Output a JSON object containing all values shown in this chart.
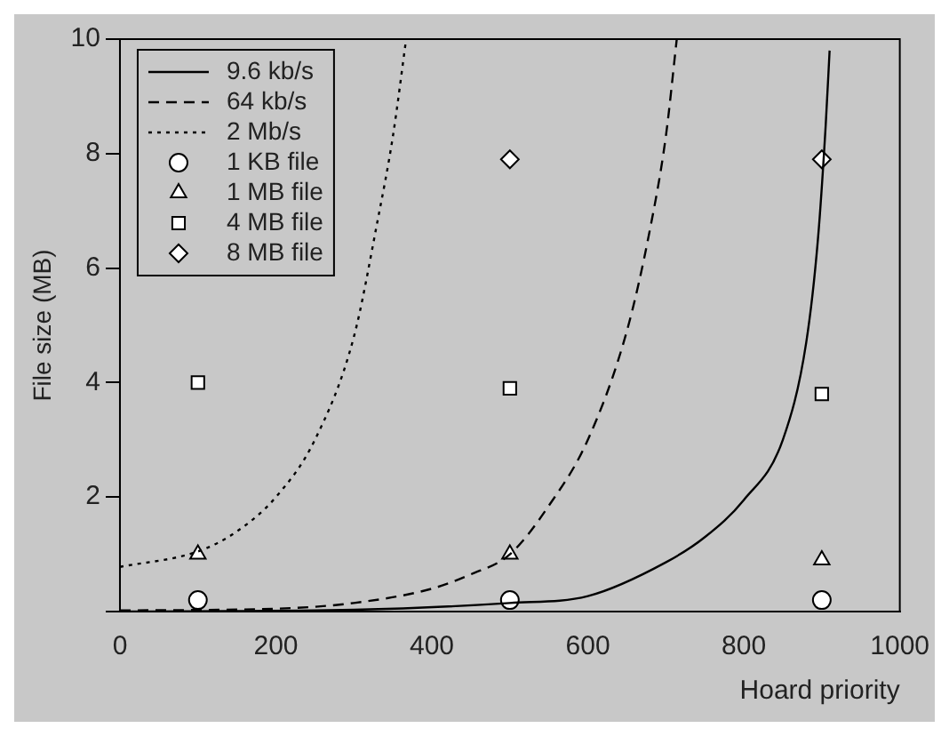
{
  "chart_data": {
    "type": "scatter",
    "xlabel": "Hoard priority",
    "ylabel": "File size (MB)",
    "xlim": [
      0,
      1000
    ],
    "xticks": [
      0,
      200,
      400,
      600,
      800,
      1000
    ],
    "ylim": [
      0,
      10
    ],
    "yticks": [
      {
        "value": 0,
        "label": null
      },
      2,
      4,
      6,
      8,
      10
    ],
    "grid": false,
    "legend": "top left",
    "series": [
      {
        "name": "9.6 kb/s",
        "type": "line",
        "color": "#000000",
        "line_style": "solid",
        "marker": "none",
        "x": [
          0,
          300,
          500,
          600,
          700,
          750,
          800,
          850,
          880,
          895,
          905,
          910
        ],
        "values": [
          0,
          0.03,
          0.15,
          0.27,
          0.86,
          1.3,
          1.95,
          3.0,
          4.7,
          6.5,
          8.5,
          9.8
        ]
      },
      {
        "name": "64 kb/s",
        "type": "line",
        "color": "#000000",
        "line_style": "dashed",
        "marker": "none",
        "x": [
          0,
          200,
          300,
          400,
          450,
          500,
          550,
          600,
          650,
          680,
          700,
          714
        ],
        "values": [
          0.02,
          0.05,
          0.15,
          0.4,
          0.65,
          1.0,
          1.85,
          3.0,
          4.9,
          6.7,
          8.3,
          10
        ]
      },
      {
        "name": "2 Mb/s",
        "type": "line",
        "color": "#000000",
        "line_style": "dotted",
        "marker": "none",
        "x": [
          0,
          100,
          150,
          200,
          250,
          300,
          330,
          350,
          367
        ],
        "values": [
          0.78,
          1.05,
          1.4,
          2.0,
          3.0,
          4.8,
          6.8,
          8.3,
          10
        ]
      },
      {
        "name": "1 KB file",
        "type": "scatter",
        "color": "#ffffff",
        "marker": "circle",
        "x": [
          100,
          500,
          900
        ],
        "values": [
          0.2,
          0.2,
          0.2
        ]
      },
      {
        "name": "1 MB file",
        "type": "scatter",
        "color": "#ffffff",
        "marker": "triangle",
        "x": [
          100,
          500,
          900
        ],
        "values": [
          1,
          1,
          0.9
        ]
      },
      {
        "name": "4 MB file",
        "type": "scatter",
        "color": "#ffffff",
        "marker": "square",
        "x": [
          100,
          500,
          900
        ],
        "values": [
          4,
          3.9,
          3.8
        ]
      },
      {
        "name": "8 MB file",
        "type": "scatter",
        "color": "#ffffff",
        "marker": "diamond",
        "x": [
          500,
          900
        ],
        "values": [
          7.9,
          7.9
        ]
      }
    ]
  }
}
